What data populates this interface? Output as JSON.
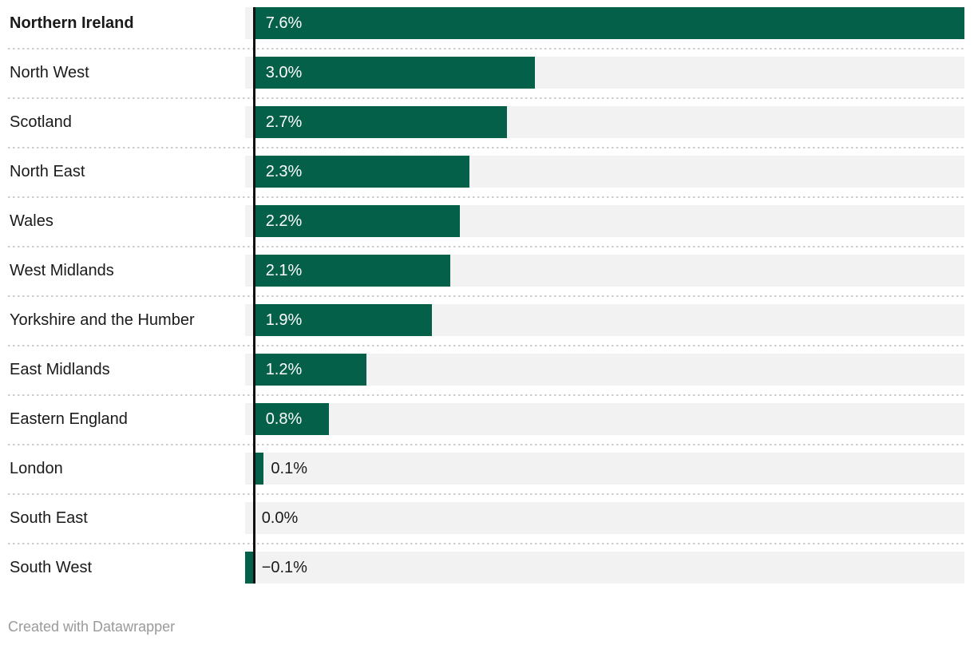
{
  "chart_data": {
    "type": "bar",
    "orientation": "horizontal",
    "title": "",
    "xlabel": "",
    "ylabel": "",
    "xlim": [
      -0.1,
      7.6
    ],
    "grid": "dotted-row-separators",
    "legend": "none",
    "categories": [
      "Northern Ireland",
      "North West",
      "Scotland",
      "North East",
      "Wales",
      "West Midlands",
      "Yorkshire and the Humber",
      "East Midlands",
      "Eastern England",
      "London",
      "South East",
      "South West"
    ],
    "values": [
      7.6,
      3.0,
      2.7,
      2.3,
      2.2,
      2.1,
      1.9,
      1.2,
      0.8,
      0.1,
      0.0,
      -0.1
    ],
    "value_labels": [
      "7.6%",
      "3.0%",
      "2.7%",
      "2.3%",
      "2.2%",
      "2.1%",
      "1.9%",
      "1.2%",
      "0.8%",
      "0.1%",
      "0.0%",
      "−0.1%"
    ],
    "highlighted_category": "Northern Ireland",
    "bar_color": "#05604a",
    "track_color": "#f2f2f2",
    "separator_color": "#cccccc",
    "axis_color": "#111111",
    "label_color": "#1a1a1a",
    "inside_value_color": "#ffffff"
  },
  "footer": {
    "text": "Created with Datawrapper",
    "color": "#9a9a9a"
  }
}
